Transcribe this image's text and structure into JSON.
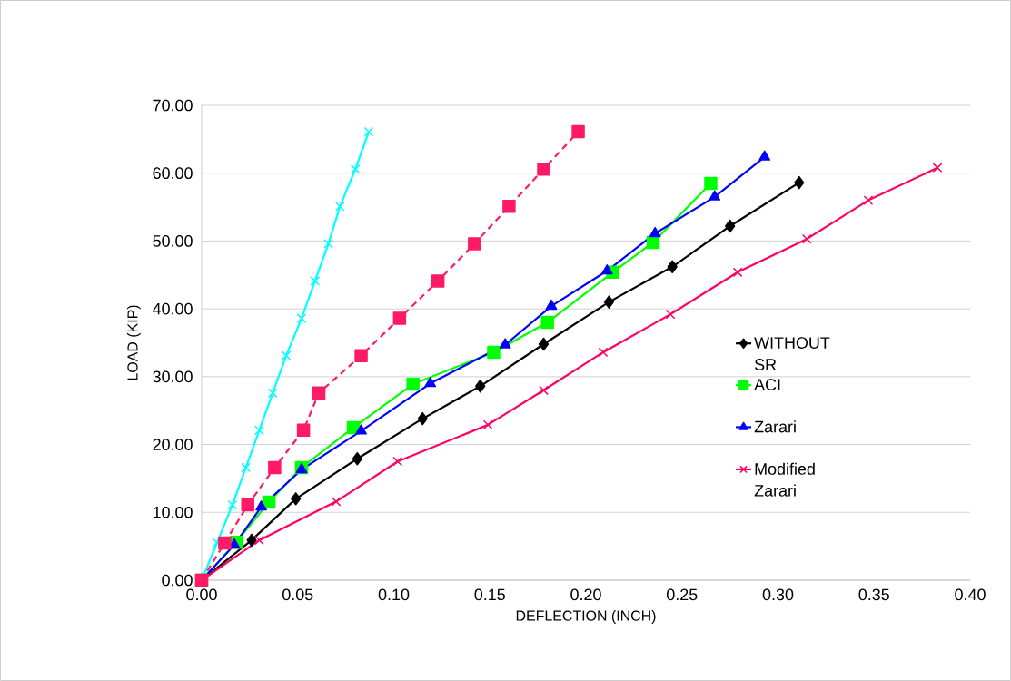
{
  "chart_data": {
    "type": "line",
    "xlabel": "DEFLECTION (INCH)",
    "ylabel": "LOAD (KIP)",
    "xlim": [
      0,
      0.4
    ],
    "ylim": [
      0,
      70
    ],
    "xticks": [
      {
        "value": 0,
        "label": "0.00"
      },
      {
        "value": 0.05,
        "label": "0.05"
      },
      {
        "value": 0.1,
        "label": "0.10"
      },
      {
        "value": 0.15,
        "label": "0.15"
      },
      {
        "value": 0.2,
        "label": "0.20"
      },
      {
        "value": 0.25,
        "label": "0.25"
      },
      {
        "value": 0.3,
        "label": "0.30"
      },
      {
        "value": 0.35,
        "label": "0.35"
      },
      {
        "value": 0.4,
        "label": "0.40"
      }
    ],
    "yticks": [
      {
        "value": 0,
        "label": "0.00"
      },
      {
        "value": 10,
        "label": "10.00"
      },
      {
        "value": 20,
        "label": "20.00"
      },
      {
        "value": 30,
        "label": "30.00"
      },
      {
        "value": 40,
        "label": "40.00"
      },
      {
        "value": 50,
        "label": "50.00"
      },
      {
        "value": 60,
        "label": "60.00"
      },
      {
        "value": 70,
        "label": "70.00"
      }
    ],
    "grid": "y",
    "legend": "right",
    "series": [
      {
        "name": "WITHOUT SR",
        "color": "#000000",
        "marker": "diamond",
        "line_style": "solid",
        "x": [
          0,
          0.026,
          0.049,
          0.081,
          0.115,
          0.145,
          0.178,
          0.212,
          0.245,
          0.275,
          0.311
        ],
        "values": [
          0,
          5.9,
          12.0,
          17.9,
          23.8,
          28.6,
          34.8,
          41.0,
          46.2,
          52.2,
          58.6
        ]
      },
      {
        "name": "ACI",
        "color": "#00ff00",
        "marker": "square",
        "line_style": "solid",
        "x": [
          0,
          0.018,
          0.035,
          0.052,
          0.079,
          0.11,
          0.152,
          0.18,
          0.214,
          0.235,
          0.265
        ],
        "values": [
          0,
          5.6,
          11.5,
          16.6,
          22.5,
          28.9,
          33.6,
          38.0,
          45.4,
          49.8,
          58.5
        ]
      },
      {
        "name": "Zarari",
        "color": "#0000ff",
        "marker": "triangle",
        "line_style": "solid",
        "x": [
          0,
          0.017,
          0.031,
          0.052,
          0.083,
          0.119,
          0.158,
          0.182,
          0.211,
          0.236,
          0.267,
          0.293
        ],
        "values": [
          0,
          5.2,
          10.8,
          16.3,
          22.0,
          29.0,
          34.7,
          40.4,
          45.6,
          51.1,
          56.5,
          62.4
        ]
      },
      {
        "name": "Modified Zarari",
        "color": "#ff0066",
        "marker": "cross",
        "line_style": "solid",
        "x": [
          0,
          0.03,
          0.07,
          0.102,
          0.149,
          0.178,
          0.209,
          0.244,
          0.279,
          0.315,
          0.347,
          0.383
        ],
        "values": [
          0,
          5.9,
          11.6,
          17.5,
          22.9,
          28.0,
          33.6,
          39.2,
          45.4,
          50.3,
          56.0,
          60.8
        ]
      },
      {
        "color": "#00ffff",
        "marker": "cross",
        "line_style": "solid",
        "x": [
          0,
          0.008,
          0.016,
          0.023,
          0.03,
          0.037,
          0.044,
          0.052,
          0.059,
          0.066,
          0.072,
          0.08,
          0.087
        ],
        "values": [
          0,
          5.5,
          11.1,
          16.6,
          22.1,
          27.6,
          33.1,
          38.6,
          44.1,
          49.6,
          55.1,
          60.6,
          66.1
        ]
      },
      {
        "color": "#ff1a66",
        "marker": "square",
        "line_style": "dashed",
        "x": [
          0,
          0.012,
          0.024,
          0.038,
          0.053,
          0.061,
          0.083,
          0.103,
          0.123,
          0.142,
          0.16,
          0.178,
          0.196
        ],
        "values": [
          0,
          5.5,
          11.1,
          16.6,
          22.1,
          27.6,
          33.1,
          38.6,
          44.1,
          49.6,
          55.1,
          60.6,
          66.1
        ]
      }
    ]
  }
}
